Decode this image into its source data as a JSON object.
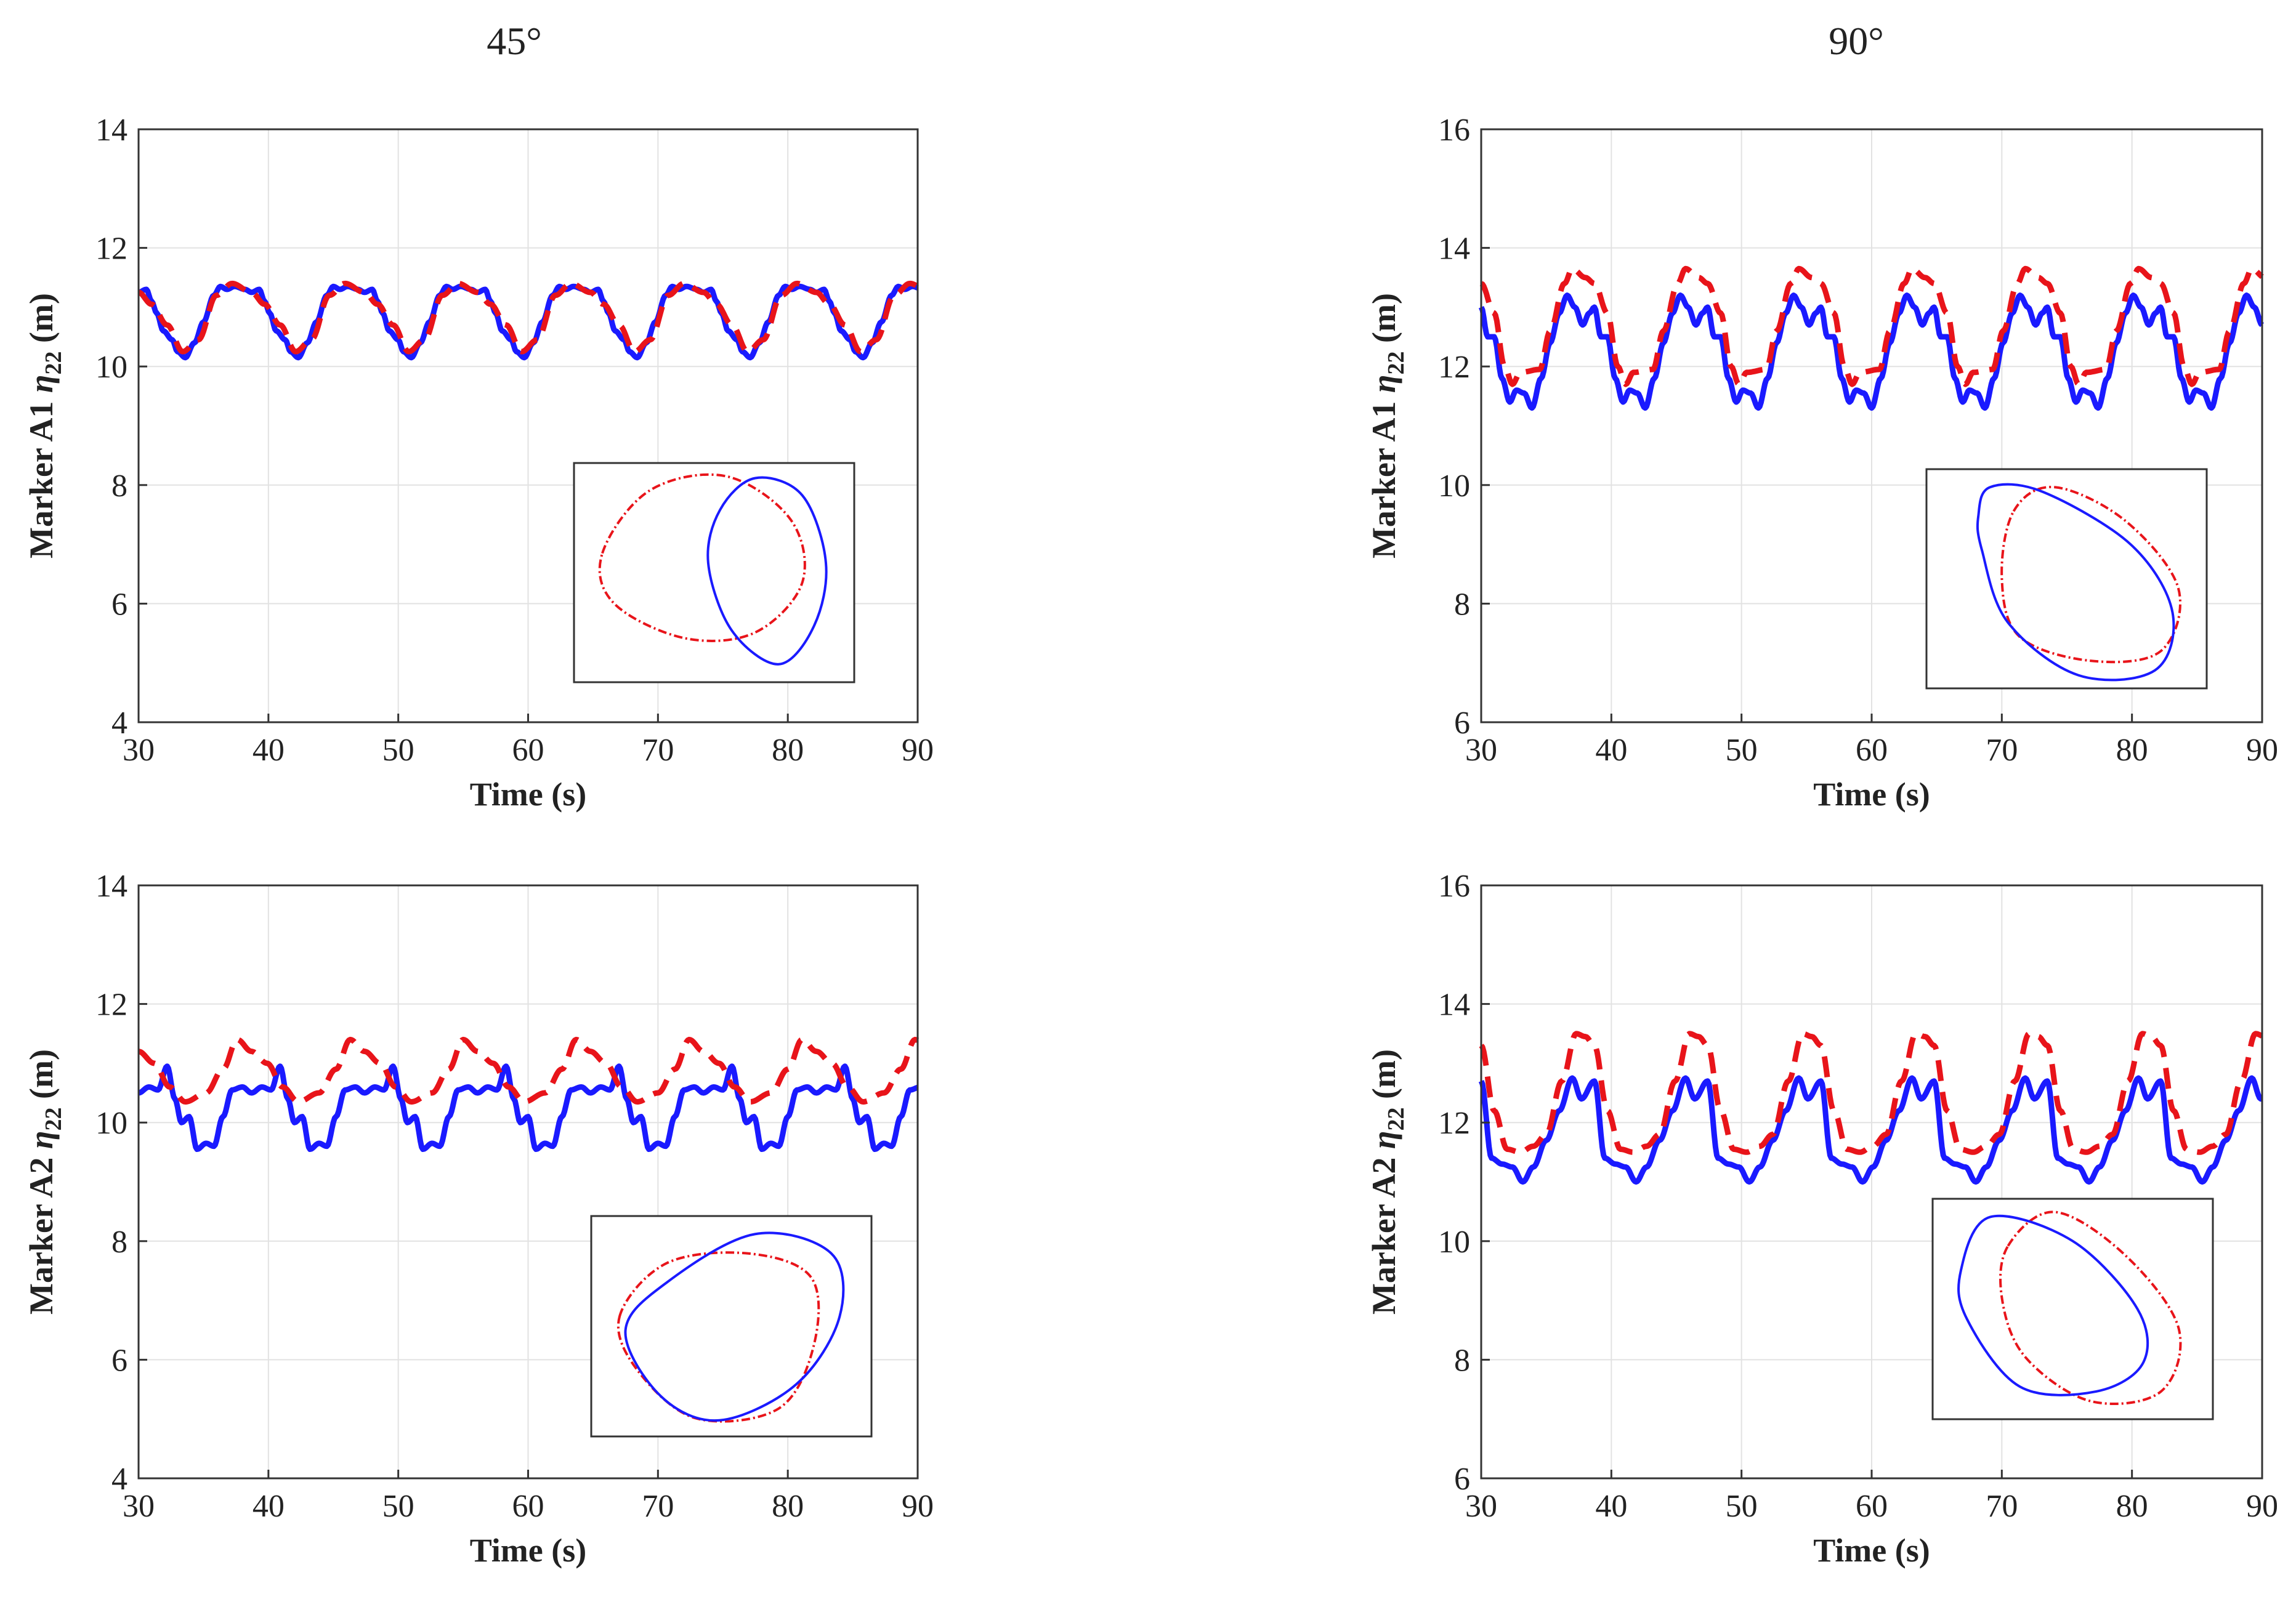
{
  "column_titles": [
    "45°",
    "90°"
  ],
  "colors": {
    "measured": "#1a1aff",
    "simulated": "#e8141a",
    "grid": "#e2e2e2",
    "axis": "#333333"
  },
  "chart_data": [
    {
      "id": "A1-45",
      "type": "line",
      "column": "45°",
      "title": "",
      "xlabel": "Time (s)",
      "ylabel": {
        "prefix": "Marker A1 ",
        "symbol": "η",
        "sub": "22",
        "unit": " (m)"
      },
      "xlim": [
        30,
        90
      ],
      "ylim": [
        4,
        14
      ],
      "xticks": [
        30,
        40,
        50,
        60,
        70,
        80,
        90
      ],
      "yticks": [
        4,
        6,
        8,
        10,
        12,
        14
      ],
      "grid": true,
      "period": 8.7,
      "series": [
        {
          "name": "blue solid",
          "style": "solid",
          "phase": 30,
          "cycle": [
            [
              0,
              11.25
            ],
            [
              0.6,
              11.3
            ],
            [
              1.0,
              11.1
            ],
            [
              1.4,
              10.9
            ],
            [
              1.9,
              10.6
            ],
            [
              2.6,
              10.45
            ],
            [
              3.0,
              10.25
            ],
            [
              3.6,
              10.15
            ],
            [
              4.3,
              10.4
            ],
            [
              5.0,
              10.75
            ],
            [
              5.8,
              11.2
            ],
            [
              6.3,
              11.35
            ],
            [
              6.8,
              11.3
            ],
            [
              7.4,
              11.35
            ],
            [
              8.2,
              11.3
            ],
            [
              8.7,
              11.25
            ]
          ]
        },
        {
          "name": "red dashed",
          "style": "dashed",
          "phase": 30,
          "cycle": [
            [
              0,
              11.25
            ],
            [
              1.0,
              11.05
            ],
            [
              2.2,
              10.7
            ],
            [
              3.4,
              10.25
            ],
            [
              4.6,
              10.45
            ],
            [
              6.0,
              11.2
            ],
            [
              7.2,
              11.4
            ],
            [
              8.7,
              11.25
            ]
          ]
        }
      ],
      "inset": {
        "blue": [
          [
            -0.05,
            0.1
          ],
          [
            0.15,
            -0.6
          ],
          [
            0.55,
            -0.95
          ],
          [
            0.85,
            -0.55
          ],
          [
            0.95,
            0.1
          ],
          [
            0.75,
            0.8
          ],
          [
            0.35,
            0.98
          ],
          [
            0.05,
            0.65
          ]
        ],
        "red": [
          [
            -0.95,
            0.2
          ],
          [
            -0.55,
            0.85
          ],
          [
            0.1,
            1.0
          ],
          [
            0.65,
            0.55
          ],
          [
            0.75,
            -0.1
          ],
          [
            0.35,
            -0.62
          ],
          [
            -0.25,
            -0.68
          ],
          [
            -0.85,
            -0.32
          ]
        ]
      }
    },
    {
      "id": "A1-90",
      "type": "line",
      "column": "90°",
      "title": "",
      "xlabel": "Time (s)",
      "ylabel": {
        "prefix": "Marker A1 ",
        "symbol": "η",
        "sub": "22",
        "unit": " (m)"
      },
      "xlim": [
        30,
        90
      ],
      "ylim": [
        6,
        16
      ],
      "xticks": [
        30,
        40,
        50,
        60,
        70,
        80,
        90
      ],
      "yticks": [
        6,
        8,
        10,
        12,
        14,
        16
      ],
      "grid": true,
      "period": 8.7,
      "series": [
        {
          "name": "blue solid",
          "style": "solid",
          "phase": 30,
          "cycle": [
            [
              0,
              13.0
            ],
            [
              0.5,
              12.5
            ],
            [
              1.0,
              12.5
            ],
            [
              1.6,
              11.8
            ],
            [
              2.2,
              11.4
            ],
            [
              2.7,
              11.6
            ],
            [
              3.3,
              11.55
            ],
            [
              3.9,
              11.3
            ],
            [
              4.6,
              11.8
            ],
            [
              5.3,
              12.4
            ],
            [
              6.0,
              12.9
            ],
            [
              6.6,
              13.2
            ],
            [
              7.2,
              13.0
            ],
            [
              7.8,
              12.7
            ],
            [
              8.3,
              12.9
            ],
            [
              8.7,
              13.0
            ]
          ]
        },
        {
          "name": "red dashed",
          "style": "dashed",
          "phase": 30,
          "cycle": [
            [
              0,
              13.4
            ],
            [
              1.0,
              12.9
            ],
            [
              1.8,
              12.0
            ],
            [
              2.4,
              11.7
            ],
            [
              3.0,
              11.9
            ],
            [
              4.5,
              11.95
            ],
            [
              5.3,
              12.6
            ],
            [
              6.4,
              13.4
            ],
            [
              7.0,
              13.65
            ],
            [
              8.0,
              13.5
            ],
            [
              8.7,
              13.4
            ]
          ]
        }
      ],
      "inset": {
        "blue": [
          [
            -0.75,
            0.65
          ],
          [
            -0.65,
            0.95
          ],
          [
            -0.2,
            0.9
          ],
          [
            0.55,
            0.35
          ],
          [
            0.9,
            -0.35
          ],
          [
            0.75,
            -0.95
          ],
          [
            0.1,
            -1.0
          ],
          [
            -0.5,
            -0.45
          ],
          [
            -0.72,
            0.3
          ]
        ],
        "red": [
          [
            -0.45,
            0.7
          ],
          [
            -0.1,
            0.95
          ],
          [
            0.5,
            0.6
          ],
          [
            0.95,
            -0.1
          ],
          [
            0.8,
            -0.75
          ],
          [
            0.2,
            -0.85
          ],
          [
            -0.4,
            -0.6
          ],
          [
            -0.55,
            0.0
          ]
        ]
      }
    },
    {
      "id": "A2-45",
      "type": "line",
      "column": "45°",
      "title": "",
      "xlabel": "Time (s)",
      "ylabel": {
        "prefix": "Marker A2 ",
        "symbol": "η",
        "sub": "22",
        "unit": " (m)"
      },
      "xlim": [
        30,
        90
      ],
      "ylim": [
        4,
        14
      ],
      "xticks": [
        30,
        40,
        50,
        60,
        70,
        80,
        90
      ],
      "yticks": [
        4,
        6,
        8,
        10,
        12,
        14
      ],
      "grid": true,
      "period": 8.7,
      "series": [
        {
          "name": "blue solid",
          "style": "solid",
          "phase": 30,
          "cycle": [
            [
              0,
              10.5
            ],
            [
              0.8,
              10.6
            ],
            [
              1.5,
              10.55
            ],
            [
              2.2,
              10.95
            ],
            [
              2.8,
              10.4
            ],
            [
              3.3,
              10.0
            ],
            [
              3.9,
              10.1
            ],
            [
              4.5,
              9.55
            ],
            [
              5.2,
              9.65
            ],
            [
              5.8,
              9.6
            ],
            [
              6.5,
              10.1
            ],
            [
              7.2,
              10.55
            ],
            [
              8.0,
              10.6
            ],
            [
              8.7,
              10.5
            ]
          ]
        },
        {
          "name": "red dashed",
          "style": "dashed",
          "phase": 30,
          "cycle": [
            [
              0,
              11.2
            ],
            [
              1.2,
              11.0
            ],
            [
              2.4,
              10.6
            ],
            [
              3.6,
              10.35
            ],
            [
              5.2,
              10.5
            ],
            [
              6.5,
              10.9
            ],
            [
              7.6,
              11.4
            ],
            [
              8.7,
              11.2
            ]
          ]
        }
      ],
      "inset": {
        "blue": [
          [
            -0.9,
            -0.05
          ],
          [
            -0.55,
            0.45
          ],
          [
            0.2,
            0.95
          ],
          [
            0.85,
            0.75
          ],
          [
            0.92,
            0.1
          ],
          [
            0.55,
            -0.6
          ],
          [
            -0.1,
            -0.97
          ],
          [
            -0.6,
            -0.72
          ]
        ],
        "red": [
          [
            -0.95,
            0.1
          ],
          [
            -0.55,
            0.65
          ],
          [
            0.15,
            0.75
          ],
          [
            0.68,
            0.5
          ],
          [
            0.7,
            -0.2
          ],
          [
            0.4,
            -0.85
          ],
          [
            -0.3,
            -0.95
          ],
          [
            -0.8,
            -0.45
          ]
        ]
      }
    },
    {
      "id": "A2-90",
      "type": "line",
      "column": "90°",
      "title": "",
      "xlabel": "Time (s)",
      "ylabel": {
        "prefix": "Marker A2 ",
        "symbol": "η",
        "sub": "22",
        "unit": " (m)"
      },
      "xlim": [
        30,
        90
      ],
      "ylim": [
        6,
        16
      ],
      "xticks": [
        30,
        40,
        50,
        60,
        70,
        80,
        90
      ],
      "yticks": [
        6,
        8,
        10,
        12,
        14,
        16
      ],
      "grid": true,
      "period": 8.7,
      "series": [
        {
          "name": "blue solid",
          "style": "solid",
          "phase": 30,
          "cycle": [
            [
              0,
              12.7
            ],
            [
              0.8,
              11.4
            ],
            [
              1.6,
              11.3
            ],
            [
              2.4,
              11.25
            ],
            [
              3.2,
              11.0
            ],
            [
              4.0,
              11.25
            ],
            [
              5.0,
              11.7
            ],
            [
              6.0,
              12.2
            ],
            [
              7.0,
              12.75
            ],
            [
              7.7,
              12.4
            ],
            [
              8.7,
              12.7
            ]
          ]
        },
        {
          "name": "red dashed",
          "style": "dashed",
          "phase": 30,
          "cycle": [
            [
              0,
              13.3
            ],
            [
              1.0,
              12.2
            ],
            [
              2.0,
              11.55
            ],
            [
              3.0,
              11.5
            ],
            [
              4.0,
              11.6
            ],
            [
              5.0,
              11.8
            ],
            [
              6.2,
              12.7
            ],
            [
              7.3,
              13.5
            ],
            [
              8.0,
              13.45
            ],
            [
              8.7,
              13.3
            ]
          ]
        }
      ],
      "inset": {
        "blue": [
          [
            -0.95,
            0.4
          ],
          [
            -0.7,
            0.95
          ],
          [
            0.0,
            0.7
          ],
          [
            0.55,
            0.0
          ],
          [
            0.6,
            -0.55
          ],
          [
            0.2,
            -0.85
          ],
          [
            -0.45,
            -0.8
          ],
          [
            -0.9,
            -0.1
          ]
        ],
        "red": [
          [
            -0.55,
            0.65
          ],
          [
            -0.15,
            1.0
          ],
          [
            0.45,
            0.55
          ],
          [
            0.9,
            -0.2
          ],
          [
            0.75,
            -0.85
          ],
          [
            0.15,
            -0.95
          ],
          [
            -0.4,
            -0.5
          ],
          [
            -0.6,
            0.1
          ]
        ]
      }
    }
  ]
}
